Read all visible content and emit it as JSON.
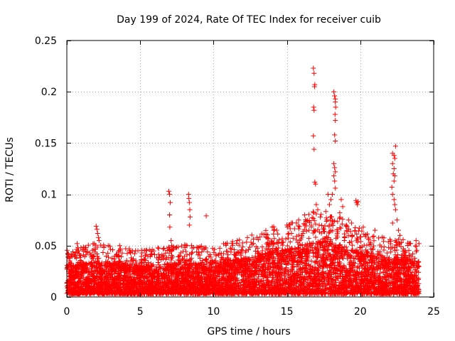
{
  "chart_data": {
    "type": "scatter",
    "title": "Day 199 of 2024, Rate Of TEC Index for receiver cuib",
    "xlabel": "GPS time / hours",
    "ylabel": "ROTI / TECUs",
    "xlim": [
      0,
      25
    ],
    "ylim": [
      0,
      0.25
    ],
    "xticks": [
      "0",
      "5",
      "10",
      "15",
      "20",
      "25"
    ],
    "yticks": [
      "0",
      "0.05",
      "0.1",
      "0.15",
      "0.2",
      "0.25"
    ],
    "grid": true,
    "marker": "+",
    "series_color": "#ff0000",
    "baseline_envelope": [
      [
        0.0,
        0.024
      ],
      [
        1.0,
        0.026
      ],
      [
        2.0,
        0.028
      ],
      [
        3.0,
        0.026
      ],
      [
        4.0,
        0.025
      ],
      [
        5.0,
        0.024
      ],
      [
        6.0,
        0.025
      ],
      [
        7.0,
        0.026
      ],
      [
        8.0,
        0.027
      ],
      [
        9.0,
        0.026
      ],
      [
        10.0,
        0.027
      ],
      [
        11.0,
        0.028
      ],
      [
        12.0,
        0.03
      ],
      [
        13.0,
        0.033
      ],
      [
        14.0,
        0.036
      ],
      [
        15.0,
        0.038
      ],
      [
        16.0,
        0.04
      ],
      [
        17.0,
        0.045
      ],
      [
        18.0,
        0.045
      ],
      [
        19.0,
        0.04
      ],
      [
        20.0,
        0.035
      ],
      [
        21.0,
        0.032
      ],
      [
        22.0,
        0.03
      ],
      [
        23.0,
        0.03
      ],
      [
        24.0,
        0.028
      ]
    ],
    "notable_points": [
      {
        "x": 0.7,
        "y": 0.052
      },
      {
        "x": 0.75,
        "y": 0.048
      },
      {
        "x": 0.8,
        "y": 0.045
      },
      {
        "x": 2.0,
        "y": 0.069
      },
      {
        "x": 2.05,
        "y": 0.066
      },
      {
        "x": 2.1,
        "y": 0.062
      },
      {
        "x": 2.15,
        "y": 0.058
      },
      {
        "x": 2.2,
        "y": 0.055
      },
      {
        "x": 3.6,
        "y": 0.05
      },
      {
        "x": 3.65,
        "y": 0.047
      },
      {
        "x": 6.95,
        "y": 0.103
      },
      {
        "x": 7.0,
        "y": 0.1
      },
      {
        "x": 7.05,
        "y": 0.092
      },
      {
        "x": 7.0,
        "y": 0.08
      },
      {
        "x": 7.02,
        "y": 0.068
      },
      {
        "x": 7.1,
        "y": 0.055
      },
      {
        "x": 7.15,
        "y": 0.05
      },
      {
        "x": 8.3,
        "y": 0.1
      },
      {
        "x": 8.32,
        "y": 0.096
      },
      {
        "x": 8.35,
        "y": 0.092
      },
      {
        "x": 8.38,
        "y": 0.085
      },
      {
        "x": 8.4,
        "y": 0.078
      },
      {
        "x": 8.35,
        "y": 0.07
      },
      {
        "x": 8.5,
        "y": 0.05
      },
      {
        "x": 9.5,
        "y": 0.079
      },
      {
        "x": 9.4,
        "y": 0.048
      },
      {
        "x": 16.8,
        "y": 0.223
      },
      {
        "x": 16.85,
        "y": 0.218
      },
      {
        "x": 16.9,
        "y": 0.207
      },
      {
        "x": 16.88,
        "y": 0.205
      },
      {
        "x": 16.82,
        "y": 0.185
      },
      {
        "x": 16.85,
        "y": 0.182
      },
      {
        "x": 16.8,
        "y": 0.157
      },
      {
        "x": 16.85,
        "y": 0.144
      },
      {
        "x": 16.9,
        "y": 0.112
      },
      {
        "x": 16.95,
        "y": 0.11
      },
      {
        "x": 17.0,
        "y": 0.09
      },
      {
        "x": 17.1,
        "y": 0.085
      },
      {
        "x": 17.2,
        "y": 0.07
      },
      {
        "x": 18.2,
        "y": 0.2
      },
      {
        "x": 18.25,
        "y": 0.196
      },
      {
        "x": 18.3,
        "y": 0.193
      },
      {
        "x": 18.3,
        "y": 0.19
      },
      {
        "x": 18.32,
        "y": 0.185
      },
      {
        "x": 18.28,
        "y": 0.178
      },
      {
        "x": 18.3,
        "y": 0.172
      },
      {
        "x": 18.25,
        "y": 0.158
      },
      {
        "x": 18.3,
        "y": 0.152
      },
      {
        "x": 18.2,
        "y": 0.13
      },
      {
        "x": 18.25,
        "y": 0.126
      },
      {
        "x": 18.3,
        "y": 0.122
      },
      {
        "x": 18.2,
        "y": 0.118
      },
      {
        "x": 18.25,
        "y": 0.113
      },
      {
        "x": 18.3,
        "y": 0.106
      },
      {
        "x": 18.1,
        "y": 0.1
      },
      {
        "x": 18.0,
        "y": 0.095
      },
      {
        "x": 17.8,
        "y": 0.1
      },
      {
        "x": 17.9,
        "y": 0.09
      },
      {
        "x": 18.7,
        "y": 0.095
      },
      {
        "x": 18.8,
        "y": 0.088
      },
      {
        "x": 18.6,
        "y": 0.082
      },
      {
        "x": 19.7,
        "y": 0.094
      },
      {
        "x": 19.75,
        "y": 0.092
      },
      {
        "x": 19.8,
        "y": 0.09
      },
      {
        "x": 19.85,
        "y": 0.093
      },
      {
        "x": 21.0,
        "y": 0.065
      },
      {
        "x": 22.2,
        "y": 0.14
      },
      {
        "x": 22.3,
        "y": 0.138
      },
      {
        "x": 22.4,
        "y": 0.147
      },
      {
        "x": 22.35,
        "y": 0.135
      },
      {
        "x": 22.2,
        "y": 0.13
      },
      {
        "x": 22.3,
        "y": 0.125
      },
      {
        "x": 22.25,
        "y": 0.12
      },
      {
        "x": 22.35,
        "y": 0.118
      },
      {
        "x": 22.3,
        "y": 0.113
      },
      {
        "x": 22.15,
        "y": 0.107
      },
      {
        "x": 22.2,
        "y": 0.1
      },
      {
        "x": 22.3,
        "y": 0.095
      },
      {
        "x": 22.35,
        "y": 0.09
      },
      {
        "x": 22.4,
        "y": 0.085
      },
      {
        "x": 22.5,
        "y": 0.075
      },
      {
        "x": 22.2,
        "y": 0.072
      },
      {
        "x": 22.6,
        "y": 0.065
      },
      {
        "x": 22.7,
        "y": 0.06
      },
      {
        "x": 14.0,
        "y": 0.068
      },
      {
        "x": 14.1,
        "y": 0.065
      },
      {
        "x": 15.0,
        "y": 0.07
      },
      {
        "x": 15.3,
        "y": 0.072
      },
      {
        "x": 15.8,
        "y": 0.075
      },
      {
        "x": 16.2,
        "y": 0.08
      },
      {
        "x": 16.5,
        "y": 0.065
      },
      {
        "x": 19.2,
        "y": 0.075
      },
      {
        "x": 19.4,
        "y": 0.072
      },
      {
        "x": 20.2,
        "y": 0.068
      },
      {
        "x": 23.8,
        "y": 0.055
      },
      {
        "x": 24.0,
        "y": 0.052
      }
    ]
  }
}
